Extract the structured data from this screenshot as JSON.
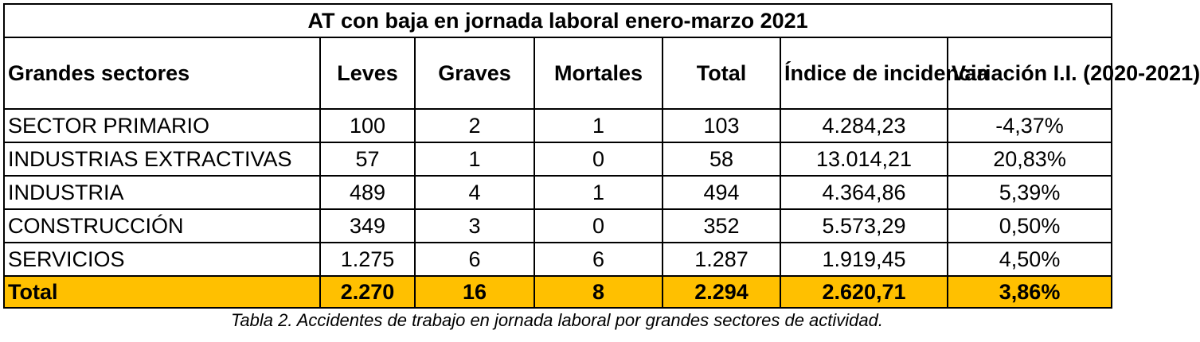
{
  "table": {
    "title": "AT con baja en jornada laboral enero-marzo 2021",
    "headers": [
      "Grandes sectores",
      "Leves",
      "Graves",
      "Mortales",
      "Total",
      "Índice de incidencia",
      "Variación I.I. (2020-2021)"
    ],
    "rows": [
      [
        "SECTOR PRIMARIO",
        "100",
        "2",
        "1",
        "103",
        "4.284,23",
        "-4,37%"
      ],
      [
        "INDUSTRIAS EXTRACTIVAS",
        "57",
        "1",
        "0",
        "58",
        "13.014,21",
        "20,83%"
      ],
      [
        "INDUSTRIA",
        "489",
        "4",
        "1",
        "494",
        "4.364,86",
        "5,39%"
      ],
      [
        "CONSTRUCCIÓN",
        "349",
        "3",
        "0",
        "352",
        "5.573,29",
        "0,50%"
      ],
      [
        "SERVICIOS",
        "1.275",
        "6",
        "6",
        "1.287",
        "1.919,45",
        "4,50%"
      ]
    ],
    "total": [
      "Total",
      "2.270",
      "16",
      "8",
      "2.294",
      "2.620,71",
      "3,86%"
    ],
    "highlight_color": "#ffc000"
  },
  "caption": "Tabla 2. Accidentes de trabajo en jornada laboral por grandes sectores de actividad."
}
